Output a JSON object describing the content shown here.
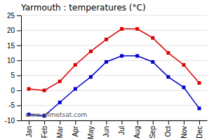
{
  "chart_data": {
    "type": "line",
    "title": "Yarmouth : temperatures (°C)",
    "categories": [
      "Jan",
      "Feb",
      "Mar",
      "Apr",
      "May",
      "Jun",
      "Jul",
      "Aug",
      "Sep",
      "Oct",
      "Nov",
      "Dec"
    ],
    "series": [
      {
        "color": "#dd0000",
        "marker": "square",
        "values": [
          0.5,
          0.0,
          3.0,
          8.5,
          13.0,
          17.0,
          20.5,
          20.5,
          17.5,
          12.5,
          8.5,
          2.5
        ]
      },
      {
        "color": "#0000cc",
        "marker": "square",
        "values": [
          -8.0,
          -8.5,
          -4.0,
          0.5,
          4.5,
          9.5,
          11.5,
          11.5,
          9.5,
          4.5,
          1.0,
          -6.0
        ]
      }
    ],
    "ylim": [
      -10,
      25
    ],
    "yticks": [
      -10,
      -5,
      0,
      5,
      10,
      15,
      20,
      25
    ],
    "grid": true,
    "annotations": [
      "www.allmetsat.com"
    ]
  }
}
